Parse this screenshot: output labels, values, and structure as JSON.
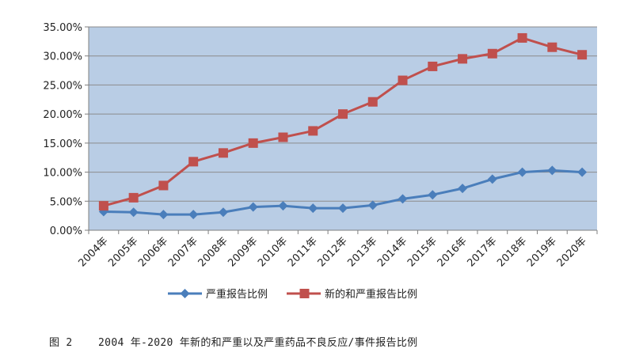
{
  "chart_data": {
    "type": "line",
    "categories": [
      "2004年",
      "2005年",
      "2006年",
      "2007年",
      "2008年",
      "2009年",
      "2010年",
      "2011年",
      "2012年",
      "2013年",
      "2014年",
      "2015年",
      "2016年",
      "2017年",
      "2018年",
      "2019年",
      "2020年"
    ],
    "series": [
      {
        "name": "严重报告比例",
        "color": "#4a7ebb",
        "marker": "diamond",
        "values": [
          3.2,
          3.1,
          2.7,
          2.7,
          3.1,
          4.0,
          4.2,
          3.8,
          3.8,
          4.3,
          5.4,
          6.1,
          7.2,
          8.8,
          10.0,
          10.3,
          10.0
        ]
      },
      {
        "name": "新的和严重报告比例",
        "color": "#c0504d",
        "marker": "square",
        "values": [
          4.2,
          5.6,
          7.7,
          11.8,
          13.3,
          15.0,
          16.0,
          17.1,
          20.0,
          22.1,
          25.8,
          28.2,
          29.5,
          30.4,
          33.1,
          31.5,
          30.2
        ]
      }
    ],
    "ylim": [
      0,
      35
    ],
    "yticks": [
      "0.00%",
      "5.00%",
      "10.00%",
      "15.00%",
      "20.00%",
      "25.00%",
      "30.00%",
      "35.00%"
    ],
    "plot_background": "#b9cde5",
    "grid": true,
    "legend_position": "bottom"
  },
  "caption": "图 2    2004 年-2020 年新的和严重以及严重药品不良反应/事件报告比例"
}
